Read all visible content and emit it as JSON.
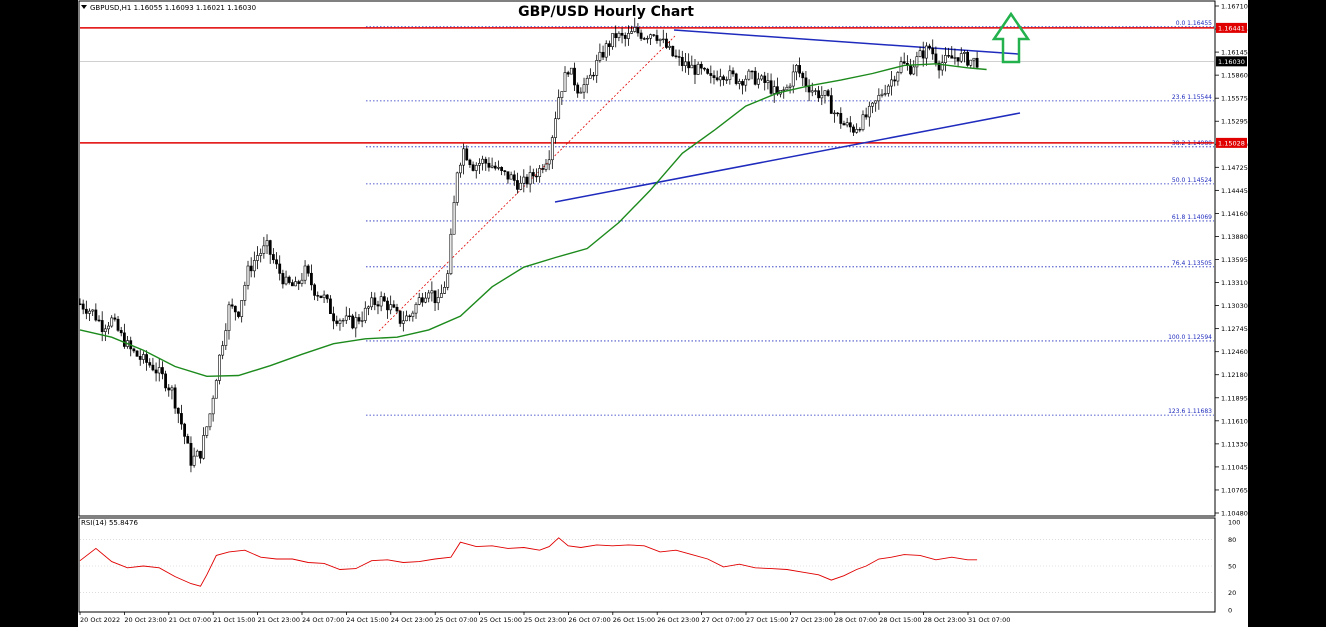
{
  "chart_data": {
    "type": "candlestick",
    "title": "GBP/USD Hourly Chart",
    "symbol_header": "GBPUSD,H1  1.16055 1.16093 1.16021 1.16030",
    "y_range": [
      1.1048,
      1.1671
    ],
    "y_ticks": [
      "1.16710",
      "1.16425",
      "1.16145",
      "1.15860",
      "1.15575",
      "1.15295",
      "1.15010",
      "1.14725",
      "1.14445",
      "1.14160",
      "1.13880",
      "1.13595",
      "1.13310",
      "1.13030",
      "1.12745",
      "1.12460",
      "1.12180",
      "1.11895",
      "1.11610",
      "1.11330",
      "1.11045",
      "1.10765",
      "1.10480"
    ],
    "x_ticks": [
      "20 Oct 2022",
      "20 Oct 23:00",
      "21 Oct 07:00",
      "21 Oct 15:00",
      "21 Oct 23:00",
      "24 Oct 07:00",
      "24 Oct 15:00",
      "24 Oct 23:00",
      "25 Oct 07:00",
      "25 Oct 15:00",
      "25 Oct 23:00",
      "26 Oct 07:00",
      "26 Oct 15:00",
      "26 Oct 23:00",
      "27 Oct 07:00",
      "27 Oct 15:00",
      "27 Oct 23:00",
      "28 Oct 07:00",
      "28 Oct 15:00",
      "28 Oct 23:00",
      "31 Oct 07:00"
    ],
    "current_price": {
      "label": "1.16030",
      "value": 1.1603
    },
    "resistance": {
      "label": "1.16441",
      "value": 1.16441,
      "color": "#e00000"
    },
    "support": {
      "label": "1.15028",
      "value": 1.15028,
      "color": "#e00000"
    },
    "fibonacci": [
      {
        "label": "0.0  1.16455",
        "value": 1.16455
      },
      {
        "label": "23.6  1.15544",
        "value": 1.15544
      },
      {
        "label": "38.2  1.14980",
        "value": 1.1498
      },
      {
        "label": "50.0  1.14524",
        "value": 1.14524
      },
      {
        "label": "61.8  1.14069",
        "value": 1.14069
      },
      {
        "label": "76.4  1.13505",
        "value": 1.13505
      },
      {
        "label": "100.0  1.12594",
        "value": 1.12594
      },
      {
        "label": "123.6  1.11683",
        "value": 1.11683
      }
    ],
    "price_path": [
      [
        0,
        1.1305
      ],
      [
        4,
        1.1295
      ],
      [
        7,
        1.1278
      ],
      [
        10,
        1.1285
      ],
      [
        13,
        1.1265
      ],
      [
        16,
        1.1248
      ],
      [
        19,
        1.1238
      ],
      [
        23,
        1.1228
      ],
      [
        26,
        1.1215
      ],
      [
        29,
        1.1198
      ],
      [
        32,
        1.1158
      ],
      [
        35,
        1.1112
      ],
      [
        38,
        1.1122
      ],
      [
        41,
        1.117
      ],
      [
        44,
        1.124
      ],
      [
        47,
        1.13
      ],
      [
        50,
        1.1296
      ],
      [
        53,
        1.1345
      ],
      [
        56,
        1.1365
      ],
      [
        59,
        1.1375
      ],
      [
        62,
        1.135
      ],
      [
        65,
        1.133
      ],
      [
        68,
        1.1325
      ],
      [
        71,
        1.1345
      ],
      [
        74,
        1.1322
      ],
      [
        77,
        1.1312
      ],
      [
        80,
        1.129
      ],
      [
        83,
        1.1285
      ],
      [
        86,
        1.1282
      ],
      [
        89,
        1.129
      ],
      [
        92,
        1.1305
      ],
      [
        95,
        1.131
      ],
      [
        98,
        1.13
      ],
      [
        101,
        1.1285
      ],
      [
        104,
        1.129
      ],
      [
        107,
        1.131
      ],
      [
        110,
        1.1325
      ],
      [
        113,
        1.1305
      ],
      [
        116,
        1.134
      ],
      [
        119,
        1.147
      ],
      [
        121,
        1.1495
      ],
      [
        124,
        1.1475
      ],
      [
        127,
        1.148
      ],
      [
        130,
        1.1475
      ],
      [
        133,
        1.1465
      ],
      [
        136,
        1.146
      ],
      [
        139,
        1.145
      ],
      [
        142,
        1.146
      ],
      [
        145,
        1.147
      ],
      [
        148,
        1.149
      ],
      [
        151,
        1.156
      ],
      [
        154,
        1.1595
      ],
      [
        157,
        1.157
      ],
      [
        160,
        1.1575
      ],
      [
        163,
        1.16
      ],
      [
        166,
        1.162
      ],
      [
        169,
        1.1635
      ],
      [
        172,
        1.163
      ],
      [
        175,
        1.164
      ],
      [
        178,
        1.1635
      ],
      [
        181,
        1.164
      ],
      [
        184,
        1.1625
      ],
      [
        187,
        1.161
      ],
      [
        190,
        1.16
      ],
      [
        193,
        1.1595
      ],
      [
        196,
        1.159
      ],
      [
        199,
        1.158
      ],
      [
        202,
        1.159
      ],
      [
        205,
        1.1585
      ],
      [
        208,
        1.158
      ],
      [
        211,
        1.1585
      ],
      [
        214,
        1.158
      ],
      [
        217,
        1.1575
      ],
      [
        220,
        1.156
      ],
      [
        223,
        1.157
      ],
      [
        226,
        1.1595
      ],
      [
        229,
        1.1575
      ],
      [
        232,
        1.1565
      ],
      [
        235,
        1.156
      ],
      [
        238,
        1.154
      ],
      [
        241,
        1.1525
      ],
      [
        244,
        1.152
      ],
      [
        247,
        1.153
      ],
      [
        250,
        1.1545
      ],
      [
        253,
        1.1565
      ],
      [
        256,
        1.158
      ],
      [
        259,
        1.16
      ],
      [
        262,
        1.1595
      ],
      [
        265,
        1.161
      ],
      [
        268,
        1.162
      ],
      [
        271,
        1.16
      ],
      [
        274,
        1.1605
      ],
      [
        277,
        1.161
      ],
      [
        280,
        1.1605
      ],
      [
        283,
        1.1603
      ]
    ],
    "moving_average": [
      [
        0,
        1.1273
      ],
      [
        10,
        1.1264
      ],
      [
        20,
        1.1248
      ],
      [
        30,
        1.1228
      ],
      [
        40,
        1.1216
      ],
      [
        50,
        1.1217
      ],
      [
        60,
        1.1229
      ],
      [
        70,
        1.1243
      ],
      [
        80,
        1.1256
      ],
      [
        90,
        1.1262
      ],
      [
        100,
        1.1264
      ],
      [
        110,
        1.1273
      ],
      [
        120,
        1.129
      ],
      [
        130,
        1.1326
      ],
      [
        140,
        1.135
      ],
      [
        150,
        1.1362
      ],
      [
        160,
        1.1373
      ],
      [
        170,
        1.1405
      ],
      [
        180,
        1.1445
      ],
      [
        190,
        1.149
      ],
      [
        200,
        1.1518
      ],
      [
        210,
        1.1548
      ],
      [
        220,
        1.1564
      ],
      [
        230,
        1.1573
      ],
      [
        240,
        1.158
      ],
      [
        250,
        1.1588
      ],
      [
        260,
        1.1598
      ],
      [
        270,
        1.16
      ],
      [
        280,
        1.1595
      ],
      [
        286,
        1.1593
      ]
    ],
    "rsi": {
      "label": "RSI(14) 55.8476",
      "y_range": [
        0,
        100
      ],
      "y_ticks": [
        100,
        80,
        50,
        20,
        0
      ],
      "series": [
        [
          0,
          56
        ],
        [
          5,
          70
        ],
        [
          10,
          55
        ],
        [
          15,
          48
        ],
        [
          20,
          50
        ],
        [
          25,
          48
        ],
        [
          30,
          38
        ],
        [
          35,
          30
        ],
        [
          38,
          27
        ],
        [
          40,
          40
        ],
        [
          43,
          62
        ],
        [
          47,
          66
        ],
        [
          52,
          68
        ],
        [
          57,
          60
        ],
        [
          62,
          58
        ],
        [
          67,
          58
        ],
        [
          72,
          54
        ],
        [
          77,
          53
        ],
        [
          82,
          46
        ],
        [
          87,
          47
        ],
        [
          92,
          56
        ],
        [
          97,
          57
        ],
        [
          102,
          54
        ],
        [
          107,
          55
        ],
        [
          112,
          58
        ],
        [
          117,
          60
        ],
        [
          120,
          77
        ],
        [
          125,
          72
        ],
        [
          130,
          73
        ],
        [
          135,
          70
        ],
        [
          140,
          71
        ],
        [
          145,
          68
        ],
        [
          148,
          72
        ],
        [
          151,
          82
        ],
        [
          154,
          73
        ],
        [
          158,
          71
        ],
        [
          163,
          74
        ],
        [
          168,
          73
        ],
        [
          173,
          74
        ],
        [
          178,
          73
        ],
        [
          183,
          66
        ],
        [
          188,
          68
        ],
        [
          193,
          63
        ],
        [
          198,
          58
        ],
        [
          203,
          49
        ],
        [
          208,
          52
        ],
        [
          213,
          48
        ],
        [
          218,
          47
        ],
        [
          223,
          46
        ],
        [
          228,
          43
        ],
        [
          233,
          40
        ],
        [
          237,
          34
        ],
        [
          241,
          39
        ],
        [
          245,
          46
        ],
        [
          248,
          50
        ],
        [
          252,
          58
        ],
        [
          256,
          60
        ],
        [
          260,
          63
        ],
        [
          265,
          62
        ],
        [
          270,
          57
        ],
        [
          275,
          60
        ],
        [
          280,
          57
        ],
        [
          283,
          57
        ]
      ]
    }
  }
}
